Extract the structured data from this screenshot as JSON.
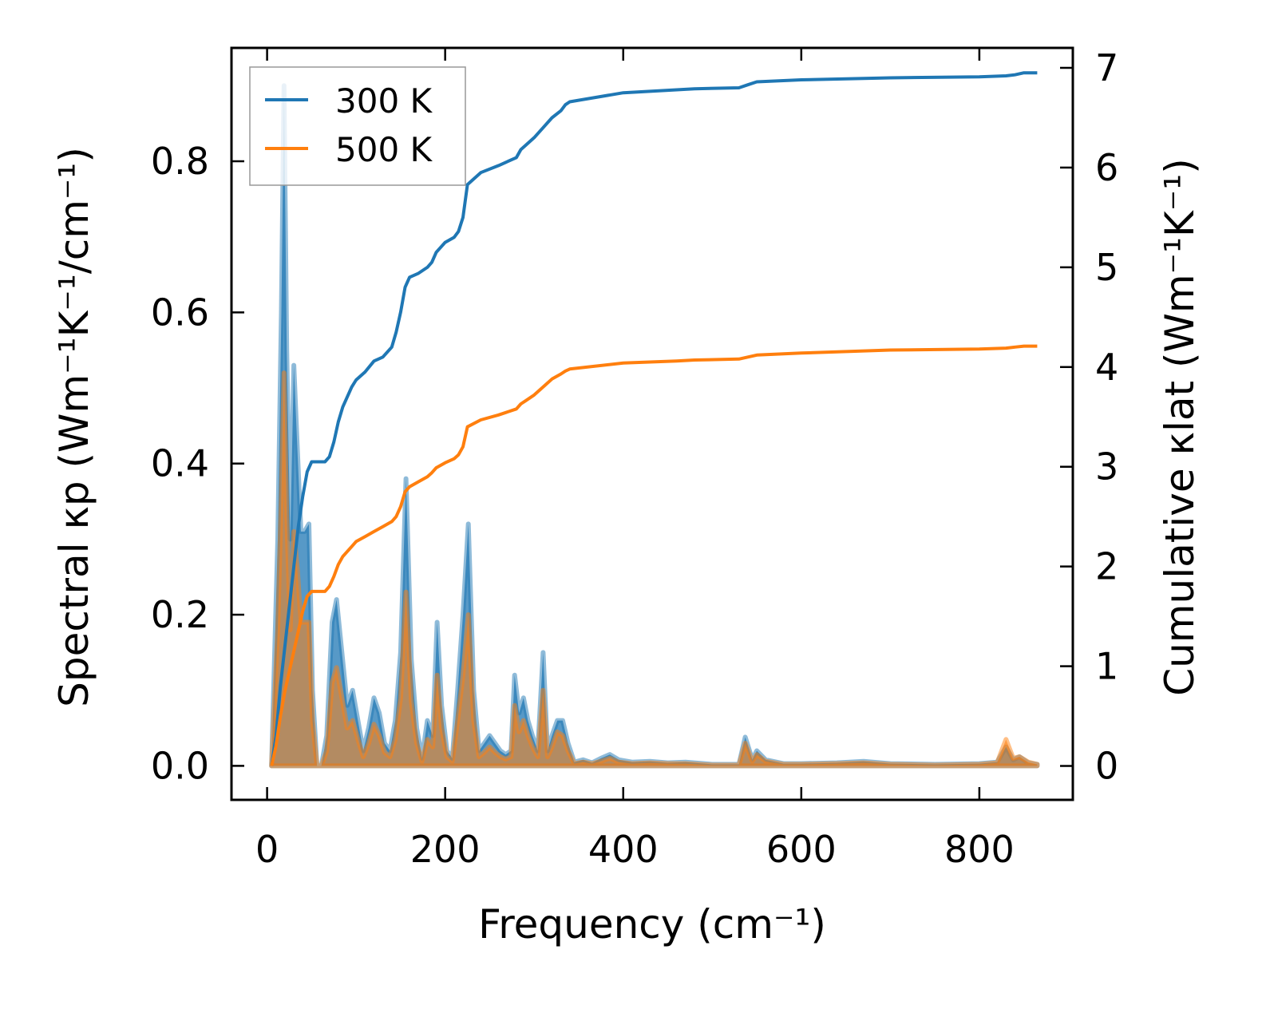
{
  "chart_data": {
    "type": "area",
    "xlabel": "Frequency (cm⁻¹)",
    "ylabel_left": "Spectral κp (Wm⁻¹K⁻¹/cm⁻¹)",
    "ylabel_right": "Cumulative κlat (Wm⁻¹K⁻¹)",
    "xlim": [
      -40,
      905
    ],
    "ylim_left": [
      -0.045,
      0.95
    ],
    "ylim_right": [
      -0.34,
      7.2
    ],
    "x_ticks": [
      0,
      200,
      400,
      600,
      800
    ],
    "y_left_ticks": [
      0.0,
      0.2,
      0.4,
      0.6,
      0.8
    ],
    "y_right_ticks": [
      0,
      1,
      2,
      3,
      4,
      5,
      6,
      7
    ],
    "x_tick_labels": [
      "0",
      "200",
      "400",
      "600",
      "800"
    ],
    "y_left_tick_labels": [
      "0.0",
      "0.2",
      "0.4",
      "0.6",
      "0.8"
    ],
    "y_right_tick_labels": [
      "0",
      "1",
      "2",
      "3",
      "4",
      "5",
      "6",
      "7"
    ],
    "legend_position": "top-left",
    "grid": false,
    "colors": {
      "300 K": "#1f77b4",
      "500 K": "#ff7f0e"
    },
    "spectral_series": [
      {
        "name": "300 K",
        "axis": "left",
        "x": [
          5,
          12,
          16,
          19,
          22,
          26,
          30,
          34,
          38,
          42,
          47,
          51,
          56,
          61,
          67,
          73,
          78,
          84,
          90,
          96,
          102,
          108,
          114,
          120,
          126,
          132,
          138,
          144,
          150,
          156,
          162,
          168,
          174,
          180,
          186,
          191,
          196,
          202,
          208,
          214,
          220,
          226,
          232,
          238,
          244,
          250,
          256,
          262,
          268,
          274,
          278,
          283,
          288,
          293,
          298,
          304,
          310,
          315,
          320,
          326,
          332,
          338,
          345,
          355,
          365,
          375,
          385,
          395,
          410,
          430,
          450,
          470,
          500,
          530,
          537,
          545,
          550,
          560,
          580,
          600,
          640,
          670,
          700,
          750,
          800,
          820,
          830,
          838,
          845,
          855,
          865
        ],
        "values": [
          0.0,
          0.3,
          0.6,
          0.9,
          0.55,
          0.3,
          0.53,
          0.42,
          0.31,
          0.31,
          0.32,
          0.1,
          0.0,
          0.0,
          0.04,
          0.19,
          0.22,
          0.15,
          0.08,
          0.1,
          0.06,
          0.02,
          0.05,
          0.09,
          0.07,
          0.03,
          0.02,
          0.06,
          0.15,
          0.38,
          0.14,
          0.05,
          0.01,
          0.06,
          0.04,
          0.19,
          0.08,
          0.02,
          0.01,
          0.1,
          0.2,
          0.32,
          0.1,
          0.02,
          0.03,
          0.04,
          0.03,
          0.02,
          0.015,
          0.02,
          0.12,
          0.07,
          0.09,
          0.06,
          0.04,
          0.02,
          0.15,
          0.02,
          0.04,
          0.06,
          0.06,
          0.03,
          0.005,
          0.008,
          0.004,
          0.01,
          0.015,
          0.008,
          0.005,
          0.006,
          0.004,
          0.005,
          0.002,
          0.002,
          0.038,
          0.008,
          0.02,
          0.008,
          0.003,
          0.003,
          0.004,
          0.006,
          0.003,
          0.002,
          0.003,
          0.005,
          0.025,
          0.008,
          0.012,
          0.004,
          0.002
        ]
      },
      {
        "name": "500 K",
        "axis": "left",
        "x": [
          5,
          12,
          16,
          19,
          22,
          26,
          30,
          34,
          38,
          42,
          47,
          51,
          56,
          61,
          67,
          73,
          78,
          84,
          90,
          96,
          102,
          108,
          114,
          120,
          126,
          132,
          138,
          144,
          150,
          156,
          162,
          168,
          174,
          180,
          186,
          191,
          196,
          202,
          208,
          214,
          220,
          226,
          232,
          238,
          244,
          250,
          256,
          262,
          268,
          274,
          278,
          283,
          288,
          293,
          298,
          304,
          310,
          315,
          320,
          326,
          332,
          338,
          345,
          355,
          365,
          375,
          385,
          395,
          410,
          430,
          450,
          470,
          500,
          530,
          537,
          545,
          550,
          560,
          580,
          600,
          640,
          670,
          700,
          750,
          800,
          820,
          830,
          838,
          845,
          855,
          865
        ],
        "values": [
          0.0,
          0.18,
          0.36,
          0.52,
          0.33,
          0.18,
          0.31,
          0.26,
          0.19,
          0.19,
          0.19,
          0.06,
          0.0,
          0.0,
          0.02,
          0.11,
          0.13,
          0.09,
          0.05,
          0.06,
          0.035,
          0.012,
          0.03,
          0.055,
          0.04,
          0.018,
          0.012,
          0.035,
          0.09,
          0.23,
          0.085,
          0.03,
          0.006,
          0.035,
          0.025,
          0.12,
          0.05,
          0.012,
          0.006,
          0.06,
          0.12,
          0.2,
          0.06,
          0.012,
          0.018,
          0.025,
          0.018,
          0.012,
          0.009,
          0.012,
          0.08,
          0.045,
          0.06,
          0.04,
          0.025,
          0.012,
          0.1,
          0.012,
          0.025,
          0.045,
          0.04,
          0.02,
          0.003,
          0.005,
          0.003,
          0.006,
          0.01,
          0.005,
          0.003,
          0.004,
          0.003,
          0.003,
          0.001,
          0.001,
          0.03,
          0.006,
          0.015,
          0.006,
          0.002,
          0.002,
          0.003,
          0.004,
          0.002,
          0.001,
          0.002,
          0.004,
          0.035,
          0.01,
          0.012,
          0.005,
          0.002
        ]
      }
    ],
    "cumulative_series": [
      {
        "name": "300 K",
        "axis": "right",
        "x": [
          5,
          10,
          15,
          20,
          25,
          30,
          35,
          40,
          45,
          50,
          55,
          60,
          65,
          70,
          75,
          80,
          85,
          90,
          95,
          100,
          110,
          120,
          130,
          140,
          145,
          150,
          155,
          160,
          170,
          180,
          185,
          190,
          200,
          210,
          215,
          220,
          225,
          240,
          260,
          280,
          285,
          290,
          300,
          310,
          320,
          330,
          335,
          340,
          400,
          460,
          480,
          530,
          540,
          550,
          600,
          700,
          800,
          830,
          840,
          850,
          865
        ],
        "values": [
          0.0,
          0.3,
          0.8,
          1.2,
          1.6,
          2.0,
          2.4,
          2.7,
          2.95,
          3.05,
          3.05,
          3.05,
          3.05,
          3.1,
          3.25,
          3.45,
          3.6,
          3.7,
          3.8,
          3.87,
          3.95,
          4.06,
          4.1,
          4.2,
          4.35,
          4.55,
          4.8,
          4.9,
          4.94,
          5.0,
          5.05,
          5.15,
          5.25,
          5.3,
          5.36,
          5.5,
          5.83,
          5.95,
          6.02,
          6.1,
          6.18,
          6.22,
          6.3,
          6.4,
          6.5,
          6.57,
          6.63,
          6.66,
          6.75,
          6.78,
          6.79,
          6.8,
          6.83,
          6.86,
          6.88,
          6.9,
          6.91,
          6.92,
          6.93,
          6.95,
          6.95
        ]
      },
      {
        "name": "500 K",
        "axis": "right",
        "x": [
          5,
          10,
          15,
          20,
          25,
          30,
          35,
          40,
          45,
          50,
          55,
          60,
          65,
          70,
          75,
          80,
          85,
          90,
          95,
          100,
          110,
          120,
          130,
          140,
          145,
          150,
          155,
          160,
          170,
          180,
          185,
          190,
          200,
          210,
          215,
          220,
          225,
          240,
          260,
          280,
          285,
          290,
          300,
          310,
          320,
          330,
          335,
          340,
          400,
          460,
          480,
          530,
          540,
          550,
          600,
          700,
          800,
          830,
          840,
          850,
          865
        ],
        "values": [
          0.0,
          0.2,
          0.5,
          0.75,
          0.95,
          1.15,
          1.35,
          1.55,
          1.7,
          1.75,
          1.75,
          1.75,
          1.75,
          1.8,
          1.9,
          2.02,
          2.1,
          2.15,
          2.2,
          2.25,
          2.3,
          2.35,
          2.4,
          2.45,
          2.5,
          2.6,
          2.75,
          2.8,
          2.85,
          2.9,
          2.94,
          2.99,
          3.04,
          3.08,
          3.12,
          3.2,
          3.4,
          3.47,
          3.52,
          3.58,
          3.63,
          3.66,
          3.72,
          3.8,
          3.88,
          3.93,
          3.96,
          3.98,
          4.04,
          4.06,
          4.07,
          4.08,
          4.1,
          4.12,
          4.14,
          4.17,
          4.18,
          4.19,
          4.2,
          4.21,
          4.21
        ]
      }
    ],
    "legend": [
      "300 K",
      "500 K"
    ]
  }
}
